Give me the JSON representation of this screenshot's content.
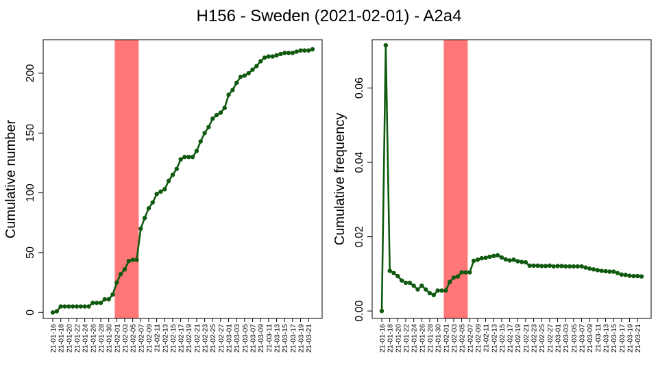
{
  "title": "H156 - Sweden (2021-02-01) - A2a4",
  "colors": {
    "line": "#0f5a0f",
    "highlight": "#ff7777",
    "axis": "#000000"
  },
  "chart_data": [
    {
      "type": "line",
      "ylabel": "Cumulative number",
      "ylim": [
        -5,
        228
      ],
      "yticks": [
        0,
        50,
        100,
        150,
        200
      ],
      "highlight": [
        "21-02-01",
        "21-02-07"
      ],
      "x": [
        "21-01-16",
        "21-01-17",
        "21-01-18",
        "21-01-19",
        "21-01-20",
        "21-01-21",
        "21-01-22",
        "21-01-23",
        "21-01-24",
        "21-01-25",
        "21-01-26",
        "21-01-27",
        "21-01-28",
        "21-01-29",
        "21-01-30",
        "21-01-31",
        "21-02-01",
        "21-02-02",
        "21-02-03",
        "21-02-04",
        "21-02-05",
        "21-02-06",
        "21-02-07",
        "21-02-08",
        "21-02-09",
        "21-02-10",
        "21-02-11",
        "21-02-12",
        "21-02-13",
        "21-02-14",
        "21-02-15",
        "21-02-16",
        "21-02-17",
        "21-02-18",
        "21-02-19",
        "21-02-20",
        "21-02-21",
        "21-02-22",
        "21-02-23",
        "21-02-24",
        "21-02-25",
        "21-02-26",
        "21-02-27",
        "21-02-28",
        "21-03-01",
        "21-03-02",
        "21-03-03",
        "21-03-04",
        "21-03-05",
        "21-03-06",
        "21-03-07",
        "21-03-08",
        "21-03-09",
        "21-03-10",
        "21-03-11",
        "21-03-12",
        "21-03-13",
        "21-03-14",
        "21-03-15",
        "21-03-16",
        "21-03-17",
        "21-03-18",
        "21-03-19",
        "21-03-20",
        "21-03-21",
        "21-03-22"
      ],
      "values": [
        0,
        1,
        5,
        5,
        5,
        5,
        5,
        5,
        5,
        5,
        8,
        8,
        8,
        11,
        11,
        15,
        25,
        32,
        36,
        43,
        44,
        44,
        70,
        79,
        87,
        92,
        99,
        101,
        103,
        110,
        115,
        120,
        128,
        130,
        130,
        130,
        135,
        143,
        150,
        155,
        162,
        165,
        167,
        171,
        182,
        186,
        192,
        197,
        198,
        200,
        203,
        206,
        210,
        213,
        214,
        214,
        215,
        216,
        217,
        217,
        217,
        218,
        219,
        219,
        219,
        220
      ]
    },
    {
      "type": "line",
      "ylabel": "Cumulative frequency",
      "ylim": [
        -0.002,
        0.073
      ],
      "yticks": [
        "0.00",
        "0.02",
        "0.04",
        "0.06"
      ],
      "highlight": [
        "21-02-01",
        "21-02-07"
      ],
      "x": [
        "21-01-16",
        "21-01-17",
        "21-01-18",
        "21-01-19",
        "21-01-20",
        "21-01-21",
        "21-01-22",
        "21-01-23",
        "21-01-24",
        "21-01-25",
        "21-01-26",
        "21-01-27",
        "21-01-28",
        "21-01-29",
        "21-01-30",
        "21-01-31",
        "21-02-01",
        "21-02-02",
        "21-02-03",
        "21-02-04",
        "21-02-05",
        "21-02-06",
        "21-02-07",
        "21-02-08",
        "21-02-09",
        "21-02-10",
        "21-02-11",
        "21-02-12",
        "21-02-13",
        "21-02-14",
        "21-02-15",
        "21-02-16",
        "21-02-17",
        "21-02-18",
        "21-02-19",
        "21-02-20",
        "21-02-21",
        "21-02-22",
        "21-02-23",
        "21-02-24",
        "21-02-25",
        "21-02-26",
        "21-02-27",
        "21-02-28",
        "21-03-01",
        "21-03-02",
        "21-03-03",
        "21-03-04",
        "21-03-05",
        "21-03-06",
        "21-03-07",
        "21-03-08",
        "21-03-09",
        "21-03-10",
        "21-03-11",
        "21-03-12",
        "21-03-13",
        "21-03-14",
        "21-03-15",
        "21-03-16",
        "21-03-17",
        "21-03-18",
        "21-03-19",
        "21-03-20",
        "21-03-21",
        "21-03-22"
      ],
      "values": [
        0.0,
        0.0715,
        0.0108,
        0.0102,
        0.0094,
        0.0082,
        0.0076,
        0.0076,
        0.0068,
        0.0058,
        0.0068,
        0.0058,
        0.0048,
        0.0043,
        0.0055,
        0.0055,
        0.0055,
        0.0078,
        0.009,
        0.0093,
        0.0104,
        0.0104,
        0.0104,
        0.0135,
        0.0138,
        0.0142,
        0.0143,
        0.0146,
        0.0148,
        0.015,
        0.0144,
        0.0139,
        0.0136,
        0.0138,
        0.0134,
        0.0132,
        0.0131,
        0.0122,
        0.0122,
        0.0122,
        0.0121,
        0.0121,
        0.0122,
        0.012,
        0.0121,
        0.0121,
        0.012,
        0.012,
        0.012,
        0.012,
        0.012,
        0.0117,
        0.0114,
        0.0112,
        0.011,
        0.0108,
        0.0107,
        0.0106,
        0.0106,
        0.0102,
        0.0098,
        0.0097,
        0.0095,
        0.0094,
        0.0094,
        0.0093
      ]
    }
  ],
  "xtick_labels": [
    "21-01-16",
    "21-01-18",
    "21-01-20",
    "21-01-22",
    "21-01-24",
    "21-01-26",
    "21-01-28",
    "21-01-30",
    "21-02-01",
    "21-02-03",
    "21-02-05",
    "21-02-07",
    "21-02-09",
    "21-02-11",
    "21-02-13",
    "21-02-15",
    "21-02-17",
    "21-02-19",
    "21-02-21",
    "21-02-23",
    "21-02-25",
    "21-02-27",
    "21-03-01",
    "21-03-03",
    "21-03-05",
    "21-03-07",
    "21-03-09",
    "21-03-11",
    "21-03-13",
    "21-03-15",
    "21-03-17",
    "21-03-19",
    "21-03-21"
  ]
}
